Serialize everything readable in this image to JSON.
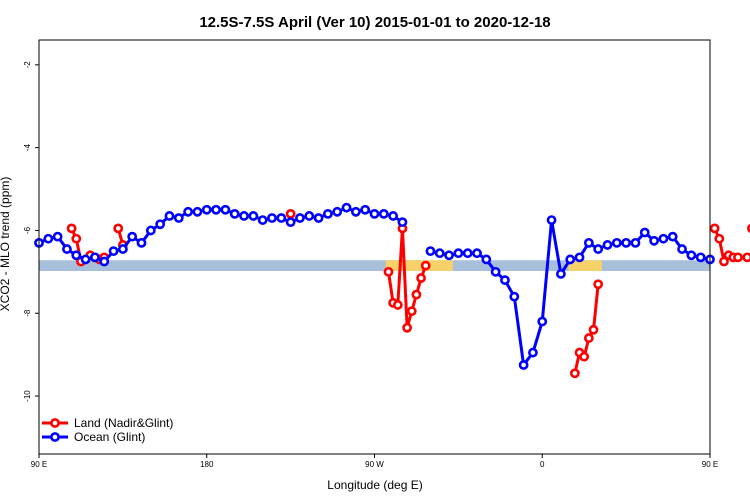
{
  "chart_data": {
    "type": "line",
    "title": "12.5S-7.5S April (Ver 10)   2015-01-01 to 2020-12-18",
    "xlabel": "Longitude (deg E)",
    "ylabel": "XCO2 - MLO trend (ppm)",
    "xlim": [
      90,
      450
    ],
    "ylim": [
      -11.4,
      -1.4
    ],
    "x_ticks": [
      {
        "value": 90,
        "label": "90 E"
      },
      {
        "value": 180,
        "label": "180"
      },
      {
        "value": 270,
        "label": "90 W"
      },
      {
        "value": 360,
        "label": "0"
      },
      {
        "value": 450,
        "label": "90 E"
      },
      {
        "value": 540,
        "label": "180"
      }
    ],
    "y_ticks": [
      {
        "value": -2,
        "label": "-2"
      },
      {
        "value": -4,
        "label": "-4"
      },
      {
        "value": -6,
        "label": "-6"
      },
      {
        "value": -8,
        "label": "-8"
      },
      {
        "value": -10,
        "label": "-10"
      }
    ],
    "legend_position": "bottom-left",
    "surface_band": {
      "y_range": [
        -6.72,
        -6.98
      ],
      "color_ocean": "#a8bfdc",
      "color_land": "#f7d26a",
      "land_ranges": [
        [
          276,
          312
        ],
        [
          374,
          392
        ]
      ]
    },
    "series": [
      {
        "name": "Land (Nadir&Glint)",
        "color": "#ff0000",
        "segments": [
          [
            [
              107.5,
              -5.95
            ],
            [
              110,
              -6.2
            ],
            [
              112.5,
              -6.75
            ],
            [
              117.5,
              -6.6
            ],
            [
              120,
              -6.65
            ],
            [
              122.5,
              -6.7
            ],
            [
              125,
              -6.65
            ]
          ],
          [
            [
              132.5,
              -5.95
            ],
            [
              135,
              -6.35
            ]
          ],
          [
            [
              225,
              -5.6
            ]
          ],
          [
            [
              277.5,
              -7.0
            ],
            [
              280,
              -7.75
            ],
            [
              282.5,
              -7.8
            ],
            [
              285,
              -5.95
            ],
            [
              287.5,
              -8.35
            ],
            [
              290,
              -7.95
            ],
            [
              292.5,
              -7.55
            ],
            [
              295,
              -7.15
            ],
            [
              297.5,
              -6.85
            ]
          ],
          [
            [
              377.5,
              -9.45
            ],
            [
              380,
              -8.95
            ],
            [
              382.5,
              -9.05
            ],
            [
              385,
              -8.6
            ],
            [
              387.5,
              -8.4
            ],
            [
              390,
              -7.3
            ]
          ],
          [
            [
              452.5,
              -5.95
            ],
            [
              455,
              -6.2
            ],
            [
              457.5,
              -6.75
            ],
            [
              460,
              -6.6
            ],
            [
              462.5,
              -6.65
            ],
            [
              465,
              -6.65
            ],
            [
              470,
              -6.65
            ]
          ],
          [
            [
              472.5,
              -5.95
            ],
            [
              475,
              -6.35
            ]
          ]
        ]
      },
      {
        "name": "Ocean (Glint)",
        "color": "#0000ff",
        "segments": [
          [
            [
              90,
              -6.3
            ],
            [
              95,
              -6.2
            ],
            [
              100,
              -6.15
            ],
            [
              105,
              -6.45
            ],
            [
              110,
              -6.6
            ],
            [
              115,
              -6.7
            ],
            [
              120,
              -6.65
            ],
            [
              125,
              -6.75
            ],
            [
              130,
              -6.5
            ],
            [
              135,
              -6.45
            ],
            [
              140,
              -6.15
            ],
            [
              145,
              -6.3
            ],
            [
              150,
              -6.0
            ],
            [
              155,
              -5.85
            ],
            [
              160,
              -5.65
            ],
            [
              165,
              -5.7
            ],
            [
              170,
              -5.55
            ],
            [
              175,
              -5.55
            ],
            [
              180,
              -5.5
            ],
            [
              185,
              -5.5
            ],
            [
              190,
              -5.5
            ],
            [
              195,
              -5.6
            ],
            [
              200,
              -5.65
            ],
            [
              205,
              -5.65
            ],
            [
              210,
              -5.75
            ],
            [
              215,
              -5.7
            ],
            [
              220,
              -5.7
            ],
            [
              225,
              -5.8
            ],
            [
              230,
              -5.7
            ],
            [
              235,
              -5.65
            ],
            [
              240,
              -5.7
            ],
            [
              245,
              -5.6
            ],
            [
              250,
              -5.55
            ],
            [
              255,
              -5.45
            ],
            [
              260,
              -5.55
            ],
            [
              265,
              -5.5
            ],
            [
              270,
              -5.6
            ],
            [
              275,
              -5.6
            ],
            [
              280,
              -5.65
            ],
            [
              285,
              -5.8
            ]
          ],
          [
            [
              300,
              -6.5
            ],
            [
              305,
              -6.55
            ],
            [
              310,
              -6.6
            ],
            [
              315,
              -6.55
            ],
            [
              320,
              -6.55
            ],
            [
              325,
              -6.55
            ],
            [
              330,
              -6.7
            ],
            [
              335,
              -7.0
            ],
            [
              340,
              -7.2
            ],
            [
              345,
              -7.6
            ],
            [
              350,
              -9.25
            ],
            [
              355,
              -8.95
            ],
            [
              360,
              -8.2
            ],
            [
              365,
              -5.75
            ],
            [
              370,
              -7.05
            ],
            [
              375,
              -6.7
            ],
            [
              380,
              -6.65
            ],
            [
              385,
              -6.3
            ],
            [
              390,
              -6.45
            ],
            [
              395,
              -6.35
            ],
            [
              400,
              -6.3
            ],
            [
              405,
              -6.3
            ],
            [
              410,
              -6.3
            ],
            [
              415,
              -6.05
            ],
            [
              420,
              -6.25
            ],
            [
              425,
              -6.2
            ],
            [
              430,
              -6.15
            ],
            [
              435,
              -6.45
            ],
            [
              440,
              -6.6
            ],
            [
              445,
              -6.65
            ],
            [
              450,
              -6.7
            ]
          ]
        ]
      }
    ]
  }
}
